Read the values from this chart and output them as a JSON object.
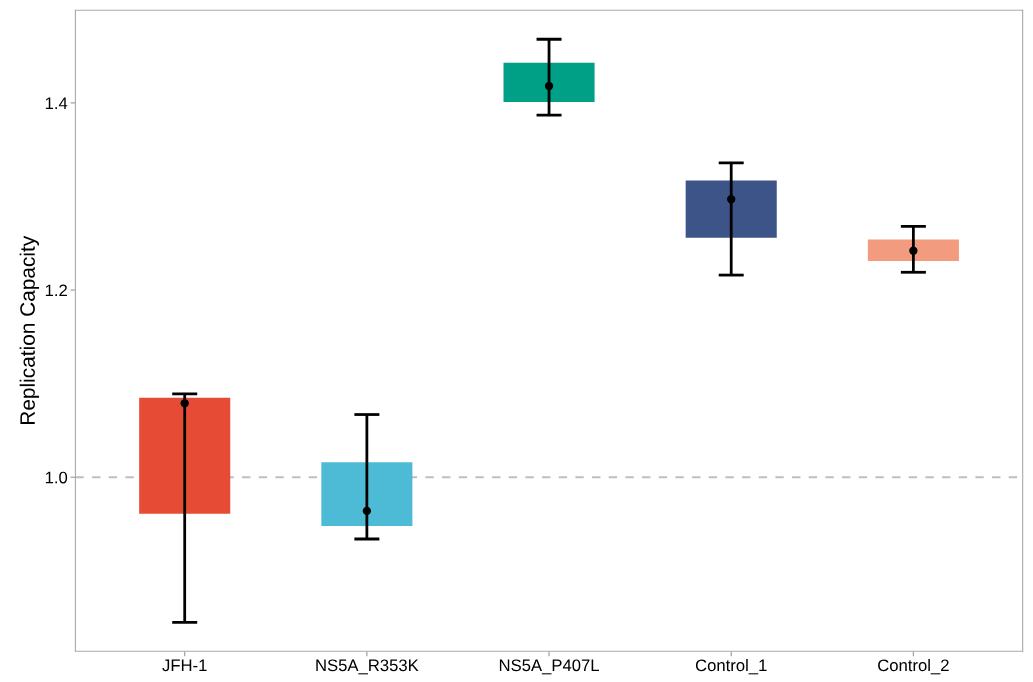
{
  "chart_data": {
    "type": "bar",
    "ylabel": "Replication Capacity",
    "categories": [
      "JFH-1",
      "NS5A_R353K",
      "NS5A_P407L",
      "Control_1",
      "Control_2"
    ],
    "series": [
      {
        "colors": [
          "#e64b35",
          "#4dbbd5",
          "#00a087",
          "#3c5488",
          "#f39b7f"
        ],
        "base": [
          0.961,
          0.948,
          1.401,
          1.256,
          1.231
        ],
        "values": [
          0.124,
          0.068,
          0.042,
          0.061,
          0.023
        ]
      },
      {
        "type": "scatter",
        "color": "#000000",
        "x": [
          "JFH-1",
          "NS5A_R353K",
          "NS5A_P407L",
          "Control_1",
          "Control_2"
        ],
        "values": [
          1.079,
          0.964,
          1.418,
          1.297,
          1.242
        ],
        "errors": [
          [
            0.845,
            1.089
          ],
          [
            0.934,
            1.067
          ],
          [
            1.387,
            1.468
          ],
          [
            1.216,
            1.336
          ],
          [
            1.219,
            1.268
          ]
        ],
        "marker": "circle"
      }
    ],
    "ylim": [
      0.814,
      1.499
    ],
    "yticks": [
      {
        "value": 1.0,
        "label": "1.0"
      },
      {
        "value": 1.2,
        "label": "1.2"
      },
      {
        "value": 1.4,
        "label": "1.4"
      }
    ],
    "ref_lines": [
      {
        "axis": "y",
        "value": 1.0,
        "color": "#bebebe",
        "line_style": "dashed"
      }
    ],
    "grid": false
  }
}
